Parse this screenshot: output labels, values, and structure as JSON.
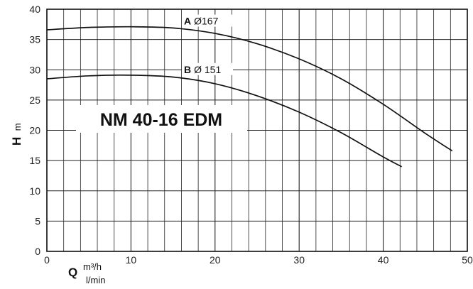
{
  "chart_data": {
    "type": "line",
    "title": "NM 40-16 EDM",
    "xlabel": {
      "symbol": "Q",
      "unit_top": "m³/h",
      "unit_bottom": "l/min"
    },
    "ylabel": {
      "symbol": "H",
      "unit": "m"
    },
    "xlim": [
      0,
      50
    ],
    "ylim": [
      0,
      40
    ],
    "x_ticks": [
      0,
      10,
      20,
      30,
      40,
      50
    ],
    "y_ticks": [
      0,
      5,
      10,
      15,
      20,
      25,
      30,
      35,
      40
    ],
    "grid": true,
    "series": [
      {
        "name": "A Ø167",
        "label_letter": "A",
        "label_text": "Ø167",
        "x": [
          0,
          5,
          10,
          15,
          20,
          25,
          30,
          35,
          40,
          45,
          48.2
        ],
        "values": [
          36.6,
          37.0,
          37.1,
          36.9,
          36.0,
          34.3,
          31.8,
          28.5,
          24.3,
          19.5,
          16.6
        ]
      },
      {
        "name": "B Ø 151",
        "label_letter": "B",
        "label_text": "Ø 151",
        "x": [
          0,
          5,
          10,
          15,
          20,
          25,
          30,
          35,
          40,
          42.2
        ],
        "values": [
          28.5,
          29.0,
          29.1,
          28.8,
          27.7,
          25.7,
          23.0,
          19.6,
          15.6,
          14.0
        ]
      }
    ]
  }
}
